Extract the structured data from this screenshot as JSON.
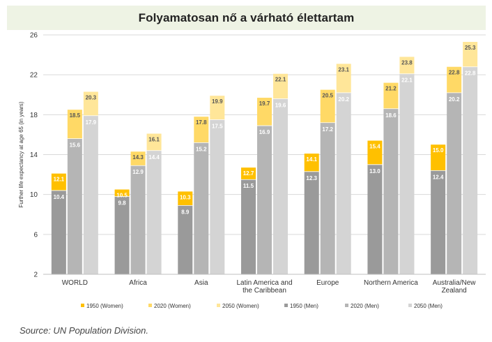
{
  "page": {
    "title": "Folyamatosan nő a várható élettartam",
    "source": "Source: UN Population Division."
  },
  "chart_data": {
    "type": "bar",
    "title": "Folyamatosan nő a várható élettartam",
    "ylabel": "Further life expectancy at age 65 (in years)",
    "ylim": [
      2,
      26
    ],
    "yticks": [
      2,
      6,
      10,
      14,
      18,
      22,
      26
    ],
    "grid": true,
    "legend": "bottom",
    "groups": [
      "WORLD",
      "Africa",
      "Asia",
      "Latin America and the Caribbean",
      "Europe",
      "Northern America",
      "Australia/New Zealand"
    ],
    "group_label_lines": [
      [
        "WORLD"
      ],
      [
        "Africa"
      ],
      [
        "Asia"
      ],
      [
        "Latin America and",
        "the Caribbean"
      ],
      [
        "Europe"
      ],
      [
        "Northern America"
      ],
      [
        "Australia/New",
        "Zealand"
      ]
    ],
    "stacks": [
      {
        "name": "1950",
        "men_color": "#9a9a9a",
        "women_color": "#ffc000",
        "women_label_color": "#ffffff"
      },
      {
        "name": "2020",
        "men_color": "#b5b5b5",
        "women_color": "#ffd966",
        "women_label_color": "#555555"
      },
      {
        "name": "2050",
        "men_color": "#d4d4d4",
        "women_color": "#ffe699",
        "women_label_color": "#555555"
      }
    ],
    "series": [
      {
        "name": "1950 (Women)",
        "color": "#ffc000",
        "values": [
          12.1,
          10.5,
          10.3,
          12.7,
          14.1,
          15.4,
          15.0
        ]
      },
      {
        "name": "2020 (Women)",
        "color": "#ffd966",
        "values": [
          18.5,
          14.3,
          17.8,
          19.7,
          20.5,
          21.2,
          22.8
        ]
      },
      {
        "name": "2050 (Women)",
        "color": "#ffe699",
        "values": [
          20.3,
          16.1,
          19.9,
          22.1,
          23.1,
          23.8,
          25.3
        ]
      },
      {
        "name": "1950 (Men)",
        "color": "#9a9a9a",
        "values": [
          10.4,
          9.8,
          8.9,
          11.5,
          12.3,
          13.0,
          12.4
        ]
      },
      {
        "name": "2020 (Men)",
        "color": "#b5b5b5",
        "values": [
          15.6,
          12.9,
          15.2,
          16.9,
          17.2,
          18.6,
          20.2
        ]
      },
      {
        "name": "2050 (Men)",
        "color": "#d4d4d4",
        "values": [
          17.9,
          14.4,
          17.5,
          19.6,
          20.2,
          22.1,
          22.8
        ]
      }
    ]
  }
}
